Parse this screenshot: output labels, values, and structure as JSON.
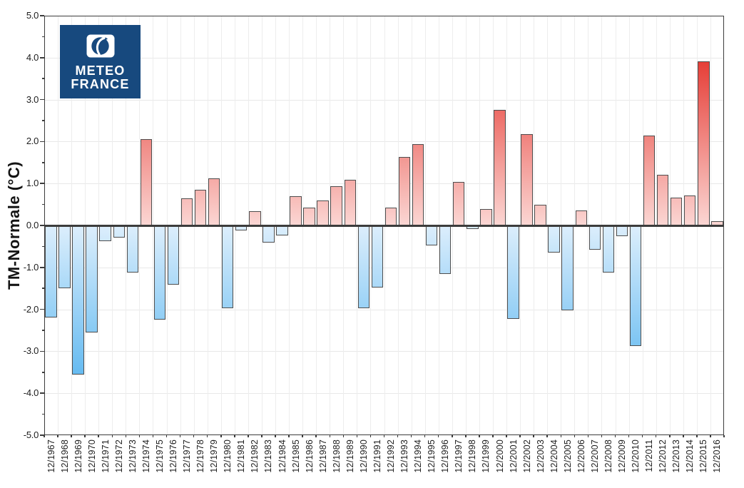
{
  "chart_data": {
    "type": "bar",
    "title": "",
    "xlabel": "",
    "ylabel": "TM-Normale (°C)",
    "ylim": [
      -5.0,
      5.0
    ],
    "ytick_step": 1.0,
    "ytick_minor_step": 0.5,
    "grid": true,
    "legend": false,
    "ytick_labels": [
      "5.0",
      "4.0",
      "3.0",
      "2.0",
      "1.0",
      "0.0",
      "-1.0",
      "-2.0",
      "-3.0",
      "-4.0",
      "-5.0"
    ],
    "categories": [
      "12/1967",
      "12/1968",
      "12/1969",
      "12/1970",
      "12/1971",
      "12/1972",
      "12/1973",
      "12/1974",
      "12/1975",
      "12/1976",
      "12/1977",
      "12/1978",
      "12/1979",
      "12/1980",
      "12/1981",
      "12/1982",
      "12/1983",
      "12/1984",
      "12/1985",
      "12/1986",
      "12/1987",
      "12/1988",
      "12/1989",
      "12/1990",
      "12/1991",
      "12/1992",
      "12/1993",
      "12/1994",
      "12/1995",
      "12/1996",
      "12/1997",
      "12/1998",
      "12/1999",
      "12/2000",
      "12/2001",
      "12/2002",
      "12/2003",
      "12/2004",
      "12/2005",
      "12/2006",
      "12/2007",
      "12/2008",
      "12/2009",
      "12/2010",
      "12/2011",
      "12/2012",
      "12/2013",
      "12/2014",
      "12/2015",
      "12/2016"
    ],
    "values": [
      -2.2,
      -1.5,
      -3.55,
      -2.55,
      -0.37,
      -0.29,
      -1.13,
      2.05,
      -2.25,
      -1.41,
      0.64,
      0.85,
      1.13,
      -1.97,
      -0.12,
      0.34,
      -0.4,
      -0.24,
      0.7,
      0.43,
      0.6,
      0.93,
      1.08,
      -1.97,
      -1.48,
      0.43,
      1.64,
      1.94,
      -0.48,
      -1.16,
      1.03,
      -0.08,
      0.39,
      2.75,
      -2.22,
      2.17,
      0.5,
      -0.65,
      -2.03,
      0.36,
      -0.58,
      -1.12,
      -0.25,
      -2.87,
      2.14,
      1.2,
      0.67,
      0.72,
      3.92,
      0.1
    ]
  },
  "colors": {
    "positive_deep": "#e63c35",
    "positive_pale": "#fbd6d3",
    "negative_deep": "#57b5f0",
    "negative_pale": "#dceefc",
    "bar_border": "#4e4e4e",
    "axis": "#3c3c3c",
    "hgrid": "#e8e8e8",
    "vgrid": "#ededed",
    "logo_bg": "#17497e"
  },
  "logo": {
    "line1": "METEO",
    "line2": "FRANCE",
    "icon": "meteo-france-icon"
  }
}
